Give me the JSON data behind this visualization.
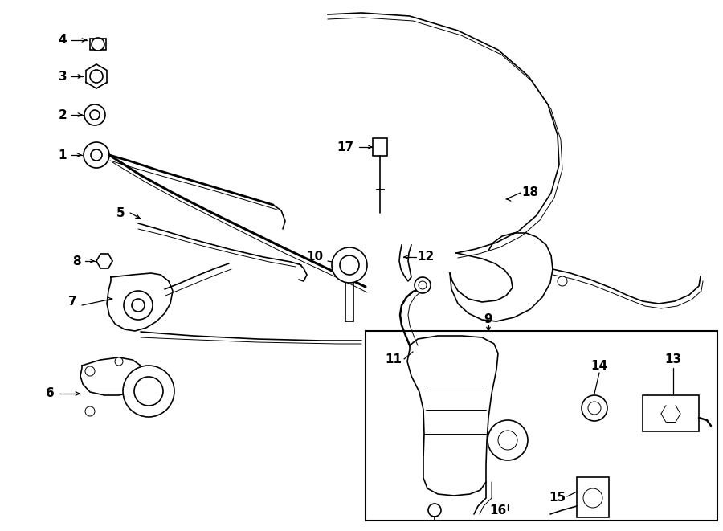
{
  "title": "",
  "bg_color": "#ffffff",
  "line_color": "#000000",
  "fig_width": 9.0,
  "fig_height": 6.61,
  "dpi": 100
}
